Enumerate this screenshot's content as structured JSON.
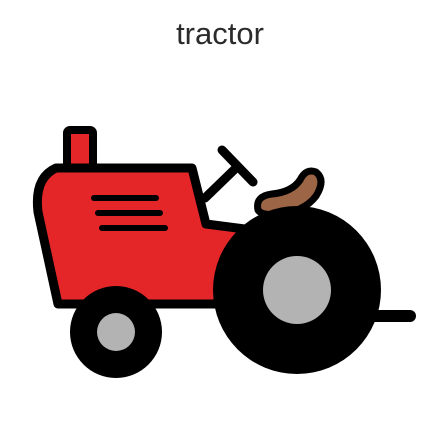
{
  "card": {
    "label": "tractor",
    "icon": "tractor-icon"
  },
  "colors": {
    "background": "#ffffff",
    "label_text": "#2b2b2b",
    "body": "#e52629",
    "outline": "#000000",
    "hub": "#b3b3b3",
    "seat": "#9c6646"
  }
}
